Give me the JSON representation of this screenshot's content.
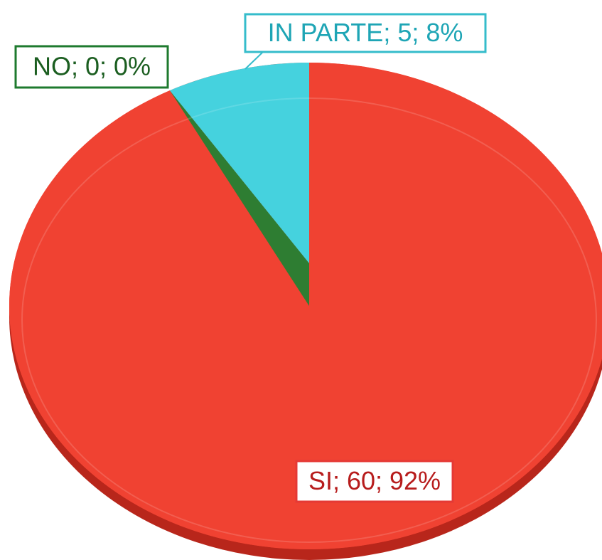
{
  "chart_data": {
    "type": "pie",
    "categories": [
      "SI",
      "NO",
      "IN PARTE"
    ],
    "values": [
      60,
      0,
      5
    ],
    "value_labels": [
      "SI; 60; 92%",
      "NO; 0; 0%",
      "IN PARTE; 5; 8%"
    ],
    "colors": [
      "#f04232",
      "#2e7d32",
      "#45d2de"
    ]
  }
}
